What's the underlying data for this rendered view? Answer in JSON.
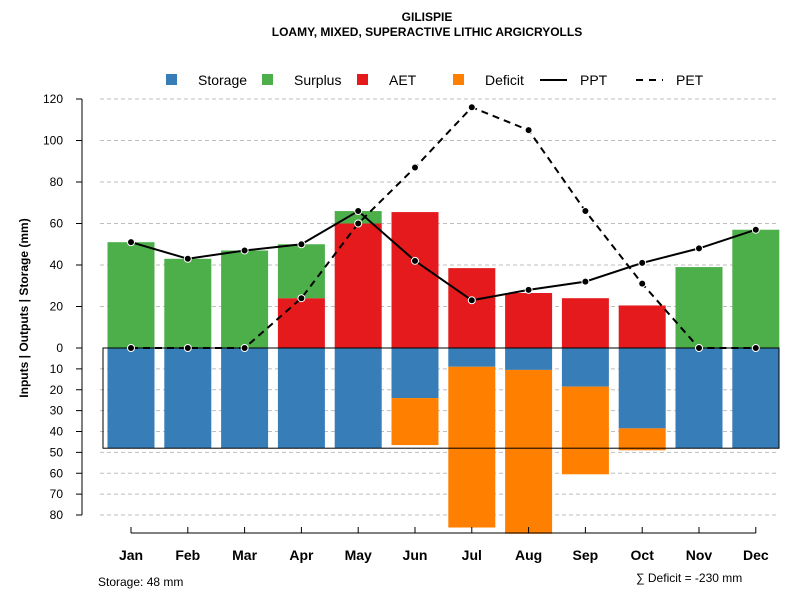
{
  "chart_data": {
    "type": "bar",
    "title": "GILISPIE",
    "subtitle": "LOAMY, MIXED, SUPERACTIVE LITHIC ARGICRYOLLS",
    "ylabel": "Inputs | Outputs | Storage    (mm)",
    "categories": [
      "Jan",
      "Feb",
      "Mar",
      "Apr",
      "May",
      "Jun",
      "Jul",
      "Aug",
      "Sep",
      "Oct",
      "Nov",
      "Dec"
    ],
    "ylim_top": [
      0,
      120
    ],
    "ylim_bottom": [
      0,
      80
    ],
    "yticks_top": [
      "0",
      "20",
      "40",
      "60",
      "80",
      "100",
      "120"
    ],
    "yticks_bottom": [
      "0",
      "10",
      "20",
      "30",
      "40",
      "50",
      "60",
      "70",
      "80"
    ],
    "legend": [
      "Storage",
      "Surplus",
      "AET",
      "Deficit",
      "PPT",
      "PET"
    ],
    "colors": {
      "storage": "#377EB8",
      "surplus": "#4DAF4A",
      "aet": "#E41A1C",
      "deficit": "#FF7F00",
      "line": "#000000",
      "grid": "#bebebe"
    },
    "series": [
      {
        "name": "AET",
        "values": [
          0,
          0,
          0,
          24,
          60,
          65.5,
          38.5,
          26.5,
          24,
          20.5,
          0,
          0
        ]
      },
      {
        "name": "Surplus",
        "values": [
          51,
          43,
          47,
          26,
          6,
          0,
          0,
          0,
          0,
          0,
          39,
          57
        ]
      },
      {
        "name": "Storage",
        "values": [
          48,
          48,
          48,
          48,
          48,
          24,
          9,
          10.5,
          18.5,
          38.5,
          48,
          48
        ]
      },
      {
        "name": "Deficit",
        "values": [
          0,
          0,
          0,
          0,
          0,
          22.5,
          77,
          78.5,
          42,
          10.5,
          0,
          0
        ]
      },
      {
        "name": "PPT",
        "values": [
          51,
          43,
          47,
          50,
          66,
          42,
          23,
          28,
          32,
          41,
          48,
          57
        ]
      },
      {
        "name": "PET",
        "values": [
          0,
          0,
          0,
          24,
          60,
          87,
          116,
          105,
          66,
          31,
          0,
          0
        ]
      }
    ],
    "storage_capacity": 48
  },
  "notes": {
    "storage": "Storage: 48 mm",
    "deficit": "∑ Deficit = -230 mm"
  }
}
